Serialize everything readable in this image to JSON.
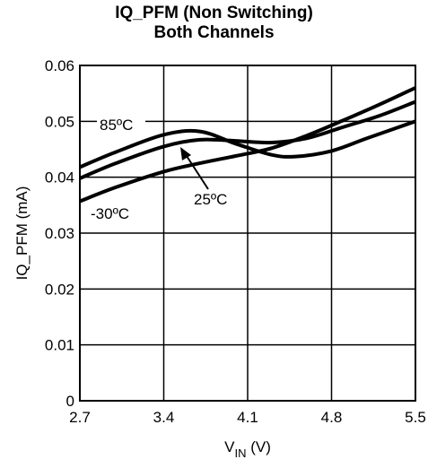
{
  "chart_data": {
    "type": "line",
    "title": "IQ_PFM (Non Switching)",
    "subtitle": "Both Channels",
    "xlabel": {
      "main": "V",
      "sub": "IN",
      "unit": " (V)"
    },
    "ylabel": "IQ_PFM (mA)",
    "xlim": [
      2.7,
      5.5
    ],
    "ylim": [
      0,
      0.06
    ],
    "xticks": [
      "2.7",
      "3.4",
      "4.1",
      "4.8",
      "5.5"
    ],
    "yticks": [
      "0",
      "0.01",
      "0.02",
      "0.03",
      "0.04",
      "0.05",
      "0.06"
    ],
    "grid": true,
    "series": [
      {
        "name": "85ºC",
        "x": [
          2.7,
          3.0,
          3.4,
          3.7,
          4.0,
          4.3,
          4.5,
          4.8,
          5.1,
          5.5
        ],
        "y": [
          0.0418,
          0.0445,
          0.0476,
          0.0482,
          0.046,
          0.044,
          0.0437,
          0.0447,
          0.047,
          0.05
        ]
      },
      {
        "name": "25ºC",
        "x": [
          2.7,
          3.0,
          3.4,
          3.7,
          4.0,
          4.3,
          4.6,
          4.9,
          5.2,
          5.5
        ],
        "y": [
          0.0398,
          0.0425,
          0.0455,
          0.0467,
          0.0465,
          0.0462,
          0.047,
          0.049,
          0.051,
          0.0535
        ]
      },
      {
        "name": "-30ºC",
        "x": [
          2.7,
          3.0,
          3.4,
          3.7,
          4.0,
          4.3,
          4.6,
          4.9,
          5.2,
          5.5
        ],
        "y": [
          0.0357,
          0.0382,
          0.041,
          0.0425,
          0.0438,
          0.0452,
          0.0475,
          0.0502,
          0.053,
          0.056
        ]
      }
    ],
    "annotations": [
      "85ºC",
      "25ºC",
      "-30ºC"
    ],
    "line_color": "#000000",
    "grid_color": "#000000"
  }
}
